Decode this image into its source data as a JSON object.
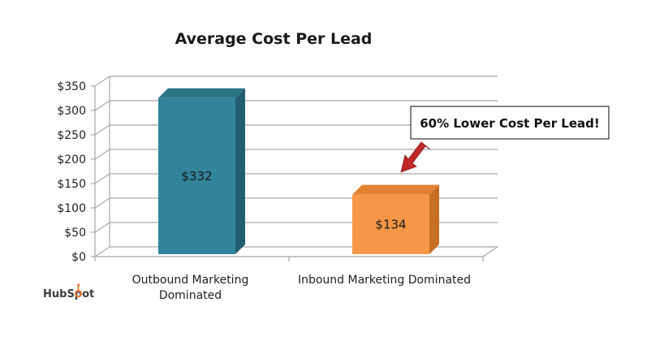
{
  "chart_data": {
    "type": "bar",
    "title": "Average Cost Per Lead",
    "categories": [
      "Outbound Marketing Dominated",
      "Inbound Marketing Dominated"
    ],
    "category_lines": [
      [
        "Outbound Marketing",
        "Dominated"
      ],
      [
        "Inbound Marketing Dominated"
      ]
    ],
    "values": [
      332,
      134
    ],
    "data_labels": [
      "$332",
      "$134"
    ],
    "ylim": [
      0,
      350
    ],
    "yticks": [
      0,
      50,
      100,
      150,
      200,
      250,
      300,
      350
    ],
    "ytick_labels": [
      "$0",
      "$50",
      "$100",
      "$150",
      "$200",
      "$250",
      "$300",
      "$350"
    ],
    "grid": true,
    "three_d": true,
    "legend": "none",
    "annotation": "60% Lower Cost Per Lead!",
    "colors": {
      "bar1_front": "#31849B",
      "bar1_side": "#215F70",
      "bar1_top": "#2A7488",
      "bar2_front": "#F79646",
      "bar2_side": "#C66F23",
      "bar2_top": "#E0822F",
      "grid": "#A6A6A6",
      "arrow": "#C0282A"
    }
  },
  "branding": {
    "logo_text": "HubSpot",
    "logo_icon": "hubspot-sprocket-icon",
    "logo_color": "#F47B3E"
  }
}
